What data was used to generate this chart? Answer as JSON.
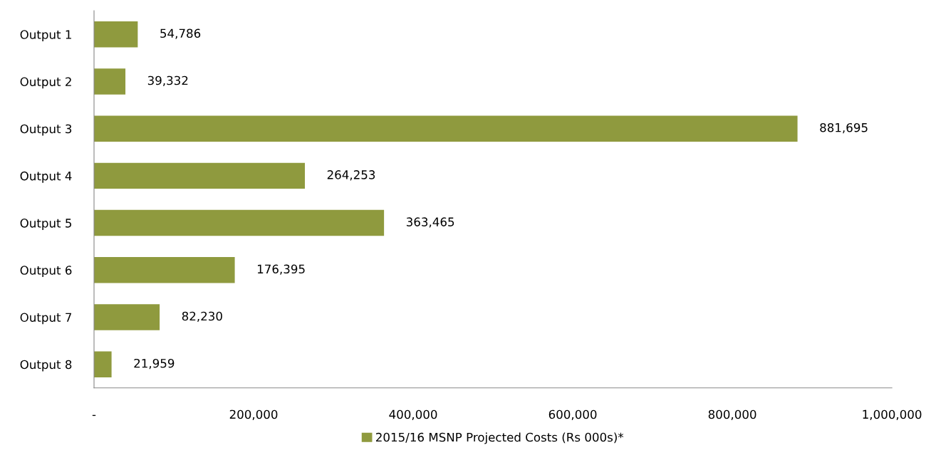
{
  "chart_data": {
    "type": "bar",
    "orientation": "horizontal",
    "categories": [
      "Output 1",
      "Output 2",
      "Output 3",
      "Output 4",
      "Output 5",
      "Output 6",
      "Output 7",
      "Output 8"
    ],
    "series": [
      {
        "name": "2015/16 MSNP Projected Costs (Rs 000s)*",
        "color": "#8f9a3e",
        "values": [
          54786,
          39332,
          881695,
          264253,
          363465,
          176395,
          82230,
          21959
        ],
        "value_labels": [
          "54,786",
          "39,332",
          "881,695",
          "264,253",
          "363,465",
          "176,395",
          "82,230",
          "21,959"
        ]
      }
    ],
    "xlim": [
      0,
      1000000
    ],
    "xticks": [
      {
        "value": 0,
        "label": "-"
      },
      {
        "value": 200000,
        "label": "200,000"
      },
      {
        "value": 400000,
        "label": "400,000"
      },
      {
        "value": 600000,
        "label": "600,000"
      },
      {
        "value": 800000,
        "label": "800,000"
      },
      {
        "value": 1000000,
        "label": "1,000,000"
      }
    ],
    "grid": false,
    "legend": "bottom"
  }
}
